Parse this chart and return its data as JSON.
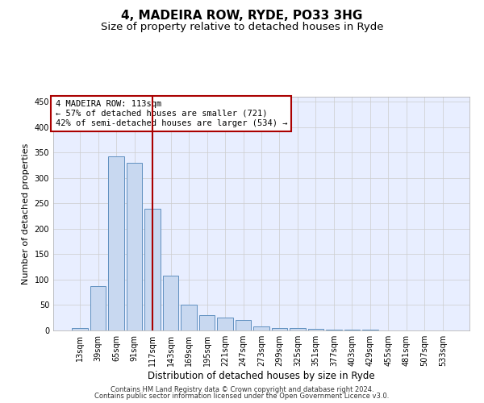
{
  "title1": "4, MADEIRA ROW, RYDE, PO33 3HG",
  "title2": "Size of property relative to detached houses in Ryde",
  "xlabel": "Distribution of detached houses by size in Ryde",
  "ylabel": "Number of detached properties",
  "categories": [
    "13sqm",
    "39sqm",
    "65sqm",
    "91sqm",
    "117sqm",
    "143sqm",
    "169sqm",
    "195sqm",
    "221sqm",
    "247sqm",
    "273sqm",
    "299sqm",
    "325sqm",
    "351sqm",
    "377sqm",
    "403sqm",
    "429sqm",
    "455sqm",
    "481sqm",
    "507sqm",
    "533sqm"
  ],
  "values": [
    5,
    88,
    342,
    330,
    240,
    108,
    50,
    30,
    25,
    20,
    8,
    5,
    4,
    3,
    2,
    1,
    1,
    0,
    0,
    0,
    0
  ],
  "bar_color": "#c8d8f0",
  "bar_edge_color": "#6090c0",
  "vline_x": 4,
  "vline_color": "#aa0000",
  "annotation_text": "4 MADEIRA ROW: 113sqm\n← 57% of detached houses are smaller (721)\n42% of semi-detached houses are larger (534) →",
  "annotation_box_color": "white",
  "annotation_box_edge_color": "#aa0000",
  "footer1": "Contains HM Land Registry data © Crown copyright and database right 2024.",
  "footer2": "Contains public sector information licensed under the Open Government Licence v3.0.",
  "ylim": [
    0,
    460
  ],
  "yticks": [
    0,
    50,
    100,
    150,
    200,
    250,
    300,
    350,
    400,
    450
  ],
  "grid_color": "#cccccc",
  "bg_color": "#e8eeff",
  "title1_fontsize": 11,
  "title2_fontsize": 9.5,
  "xlabel_fontsize": 8.5,
  "ylabel_fontsize": 8,
  "tick_fontsize": 7,
  "footer_fontsize": 6,
  "ann_fontsize": 7.5
}
